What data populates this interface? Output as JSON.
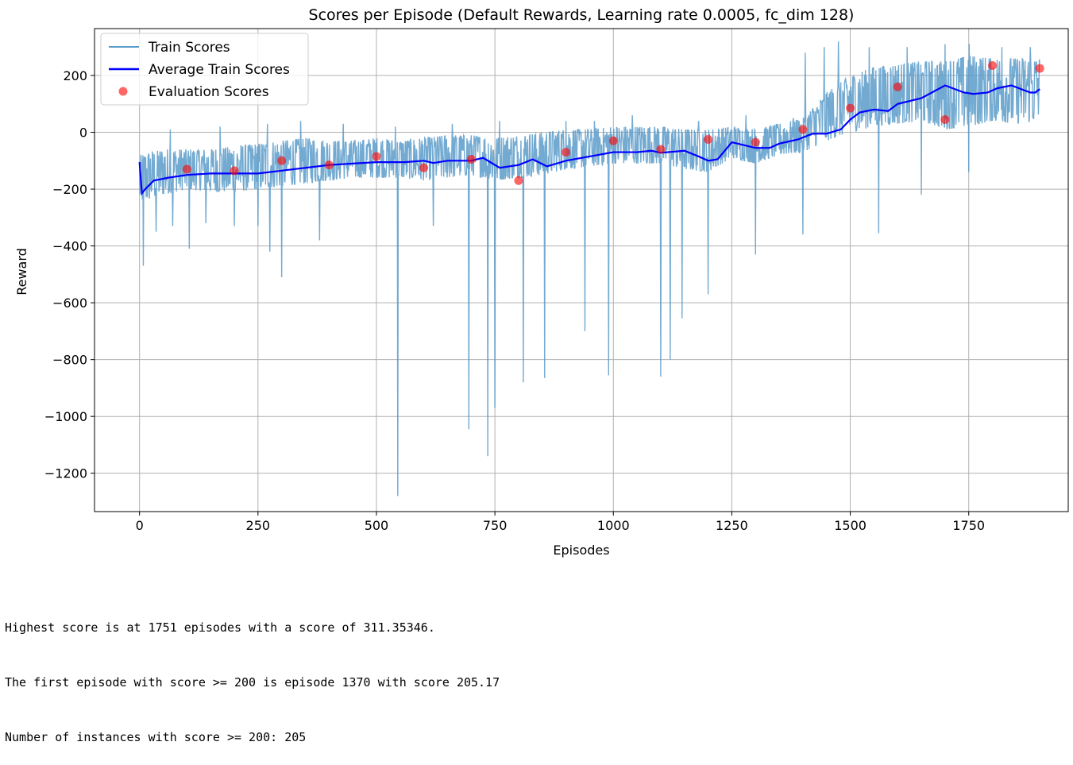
{
  "colors": {
    "train": "#5b9bc9",
    "average": "#0000ff",
    "evaluation": "#ff0000",
    "grid": "#b0b0b0"
  },
  "chart_data": {
    "type": "line",
    "title": "Scores per Episode (Default Rewards, Learning rate 0.0005, fc_dim 128)",
    "xlabel": "Episodes",
    "ylabel": "Reward",
    "xlim": [
      -95,
      1960
    ],
    "ylim": [
      -1335,
      365
    ],
    "xticks": [
      0,
      250,
      500,
      750,
      1000,
      1250,
      1500,
      1750
    ],
    "yticks": [
      200,
      0,
      -200,
      -400,
      -600,
      -800,
      -1000,
      -1200
    ],
    "xtick_labels": [
      "0",
      "250",
      "500",
      "750",
      "1000",
      "1250",
      "1500",
      "1750"
    ],
    "ytick_labels": [
      "200",
      "0",
      "−200",
      "−400",
      "−600",
      "−800",
      "−1000",
      "−1200"
    ],
    "grid": true,
    "legend_position": "top-left",
    "series": [
      {
        "name": "Train Scores",
        "kind": "line",
        "band": [
          [
            0,
            -250,
            -80
          ],
          [
            50,
            -220,
            -60
          ],
          [
            100,
            -200,
            -60
          ],
          [
            150,
            -210,
            -60
          ],
          [
            200,
            -210,
            -50
          ],
          [
            250,
            -200,
            -40
          ],
          [
            300,
            -190,
            -30
          ],
          [
            350,
            -180,
            -20
          ],
          [
            400,
            -170,
            -30
          ],
          [
            450,
            -160,
            -30
          ],
          [
            500,
            -160,
            -20
          ],
          [
            550,
            -160,
            -30
          ],
          [
            600,
            -170,
            -20
          ],
          [
            650,
            -160,
            -10
          ],
          [
            700,
            -150,
            -10
          ],
          [
            750,
            -170,
            -20
          ],
          [
            800,
            -160,
            -10
          ],
          [
            850,
            -150,
            0
          ],
          [
            900,
            -130,
            10
          ],
          [
            950,
            -120,
            10
          ],
          [
            1000,
            -110,
            20
          ],
          [
            1050,
            -110,
            20
          ],
          [
            1100,
            -110,
            20
          ],
          [
            1150,
            -130,
            10
          ],
          [
            1200,
            -140,
            10
          ],
          [
            1250,
            -90,
            20
          ],
          [
            1300,
            -110,
            10
          ],
          [
            1350,
            -80,
            30
          ],
          [
            1400,
            -70,
            50
          ],
          [
            1450,
            -30,
            140
          ],
          [
            1500,
            0,
            200
          ],
          [
            1550,
            20,
            230
          ],
          [
            1600,
            30,
            240
          ],
          [
            1650,
            40,
            250
          ],
          [
            1700,
            10,
            250
          ],
          [
            1750,
            20,
            270
          ],
          [
            1800,
            40,
            260
          ],
          [
            1850,
            30,
            260
          ],
          [
            1900,
            40,
            260
          ]
        ],
        "spikes": [
          [
            8,
            -470
          ],
          [
            35,
            -350
          ],
          [
            70,
            -330
          ],
          [
            105,
            -410
          ],
          [
            140,
            -320
          ],
          [
            200,
            -330
          ],
          [
            250,
            -330
          ],
          [
            275,
            -420
          ],
          [
            300,
            -510
          ],
          [
            380,
            -380
          ],
          [
            545,
            -1280
          ],
          [
            620,
            -330
          ],
          [
            695,
            -1045
          ],
          [
            735,
            -1140
          ],
          [
            750,
            -970
          ],
          [
            810,
            -880
          ],
          [
            855,
            -865
          ],
          [
            940,
            -700
          ],
          [
            990,
            -855
          ],
          [
            1100,
            -860
          ],
          [
            1120,
            -800
          ],
          [
            1145,
            -655
          ],
          [
            1200,
            -570
          ],
          [
            1300,
            -430
          ],
          [
            1400,
            -360
          ],
          [
            1560,
            -355
          ],
          [
            1650,
            -220
          ],
          [
            1750,
            -140
          ]
        ],
        "highs": [
          [
            65,
            10
          ],
          [
            170,
            20
          ],
          [
            270,
            30
          ],
          [
            340,
            40
          ],
          [
            430,
            30
          ],
          [
            540,
            20
          ],
          [
            660,
            30
          ],
          [
            760,
            40
          ],
          [
            900,
            40
          ],
          [
            960,
            40
          ],
          [
            1040,
            60
          ],
          [
            1180,
            40
          ],
          [
            1280,
            60
          ],
          [
            1380,
            50
          ],
          [
            1405,
            280
          ],
          [
            1445,
            300
          ],
          [
            1475,
            320
          ],
          [
            1540,
            300
          ],
          [
            1620,
            300
          ],
          [
            1700,
            310
          ],
          [
            1751,
            311.35
          ],
          [
            1820,
            300
          ],
          [
            1880,
            300
          ]
        ]
      },
      {
        "name": "Average Train Scores",
        "kind": "line",
        "x": [
          0,
          5,
          12,
          30,
          60,
          100,
          150,
          200,
          250,
          300,
          350,
          400,
          450,
          500,
          540,
          560,
          600,
          620,
          650,
          700,
          725,
          760,
          800,
          830,
          860,
          880,
          900,
          950,
          1000,
          1050,
          1080,
          1100,
          1150,
          1180,
          1200,
          1220,
          1250,
          1300,
          1330,
          1350,
          1390,
          1420,
          1450,
          1480,
          1500,
          1520,
          1550,
          1580,
          1600,
          1650,
          1700,
          1740,
          1760,
          1790,
          1810,
          1840,
          1880,
          1890,
          1900
        ],
        "y": [
          -105,
          -215,
          -200,
          -170,
          -160,
          -150,
          -145,
          -145,
          -145,
          -135,
          -125,
          -115,
          -110,
          -105,
          -105,
          -105,
          -100,
          -108,
          -100,
          -100,
          -90,
          -125,
          -115,
          -95,
          -120,
          -110,
          -100,
          -85,
          -70,
          -70,
          -65,
          -72,
          -65,
          -85,
          -100,
          -95,
          -35,
          -55,
          -55,
          -40,
          -25,
          -5,
          -5,
          10,
          45,
          70,
          80,
          75,
          100,
          120,
          165,
          140,
          135,
          140,
          155,
          165,
          140,
          140,
          152
        ]
      },
      {
        "name": "Evaluation Scores",
        "kind": "scatter",
        "x": [
          100,
          200,
          300,
          400,
          500,
          600,
          700,
          800,
          900,
          1000,
          1100,
          1200,
          1300,
          1400,
          1500,
          1600,
          1700,
          1800,
          1900
        ],
        "y": [
          -130,
          -135,
          -100,
          -115,
          -85,
          -125,
          -95,
          -170,
          -70,
          -30,
          -60,
          -25,
          -35,
          10,
          85,
          160,
          45,
          235,
          225
        ]
      }
    ]
  },
  "output": {
    "lines": [
      "Highest score is at 1751 episodes with a score of 311.35346.",
      "The first episode with score >= 200 is episode 1370 with score 205.17",
      "Number of instances with score >= 200: 205"
    ]
  }
}
